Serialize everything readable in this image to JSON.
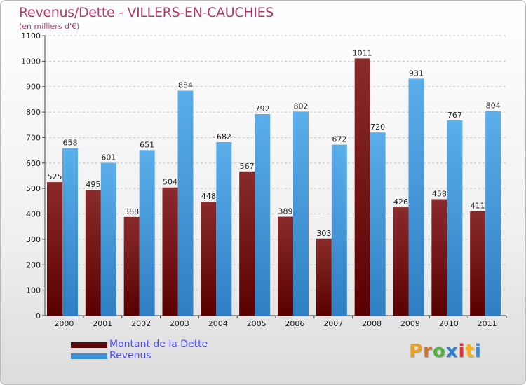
{
  "chart_data": {
    "type": "bar",
    "title": "Revenus/Dette - VILLERS-EN-CAUCHIES",
    "subtitle": "(en milliers d'€)",
    "categories": [
      "2000",
      "2001",
      "2002",
      "2003",
      "2004",
      "2005",
      "2006",
      "2007",
      "2008",
      "2009",
      "2010",
      "2011"
    ],
    "series": [
      {
        "name": "Montant de la Dette",
        "color": "#7b1a1a",
        "values": [
          525,
          495,
          388,
          504,
          448,
          567,
          389,
          303,
          1011,
          426,
          458,
          411
        ]
      },
      {
        "name": "Revenus",
        "color": "#4a9ee0",
        "values": [
          658,
          601,
          651,
          884,
          682,
          792,
          802,
          672,
          720,
          931,
          767,
          804
        ]
      }
    ],
    "ylim": [
      0,
      1100
    ],
    "yticks": [
      0,
      100,
      200,
      300,
      400,
      500,
      600,
      700,
      800,
      900,
      1000,
      1100
    ],
    "grid": true,
    "legend_position": "bottom-left"
  },
  "logo": {
    "letters": [
      {
        "ch": "P",
        "color": "#e8a020"
      },
      {
        "ch": "r",
        "color": "#d07030"
      },
      {
        "ch": "o",
        "color": "#50b040"
      },
      {
        "ch": "x",
        "color": "#2a7fd0"
      },
      {
        "ch": "i",
        "color": "#e03030"
      },
      {
        "ch": "t",
        "color": "#f0b020"
      },
      {
        "ch": "i",
        "color": "#3090e0"
      }
    ]
  }
}
